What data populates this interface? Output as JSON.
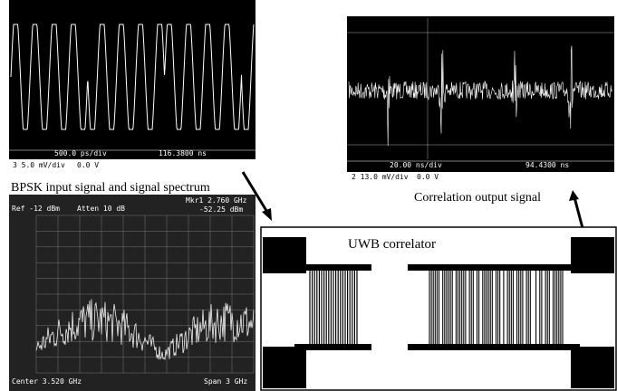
{
  "captions": {
    "input": "BPSK input signal and signal spectrum",
    "output": "Correlation output signal",
    "correlator": "UWB correlator"
  },
  "input_scope": {
    "timebase": "500.0 ps/div",
    "position": "116.3800 ns",
    "channel": "3  5.0 mV/div",
    "offset": "0.0 V"
  },
  "output_scope": {
    "timebase": "20.00 ns/div",
    "position": "94.4300 ns",
    "channel": "2  13.0 mV/div",
    "offset": "0.0 V"
  },
  "spectrum": {
    "ref": "Ref -12 dBm",
    "atten": "Atten 10 dB",
    "marker": "Mkr1 2.760 GHz",
    "marker_level": "-52.25 dBm",
    "center": "Center 3.520 GHz",
    "span": "Span 3 GHz"
  }
}
